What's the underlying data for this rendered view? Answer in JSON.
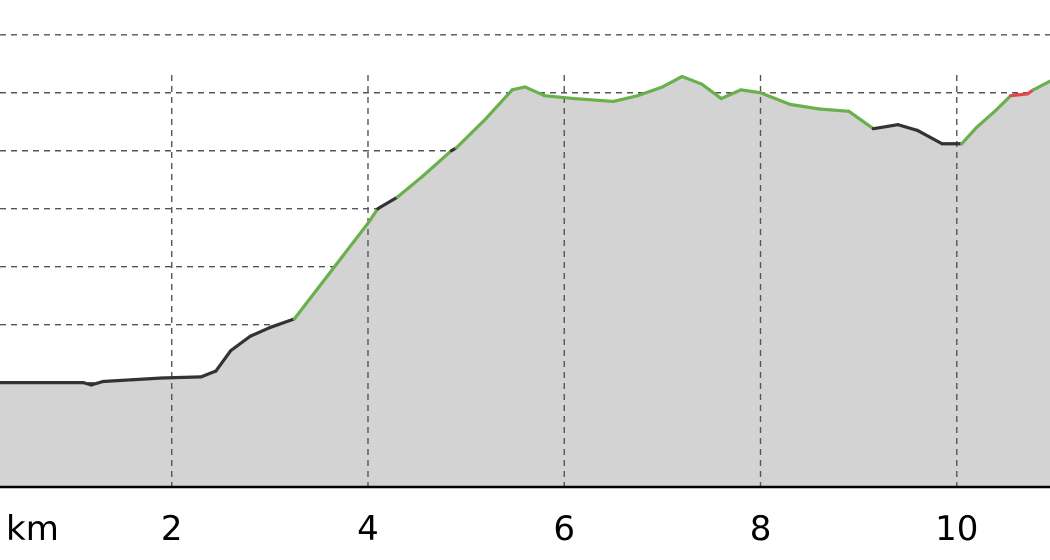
{
  "chart_data": {
    "type": "area",
    "title": "",
    "xlabel": "",
    "ylabel": "",
    "x_unit_label": "km",
    "x_ticks": [
      2,
      4,
      6,
      8,
      10
    ],
    "x_tick_labels": [
      "2",
      "4",
      "6",
      "8",
      "10"
    ],
    "xlim": [
      0.25,
      10.95
    ],
    "ylim": [
      -1.8,
      6.6
    ],
    "y_gridlines": [
      -1,
      0,
      1,
      2,
      3,
      4,
      5,
      6
    ],
    "y_tick_labels_visible": false,
    "grid": true,
    "fill_color": "#d3d3d3",
    "grade_colors": {
      "flat": "#333333",
      "climb": "#6ab04c",
      "steep": "#e8454a"
    },
    "profile": [
      {
        "x": 0.25,
        "y": 0.0,
        "grade": "flat"
      },
      {
        "x": 1.1,
        "y": 0.0,
        "grade": "flat"
      },
      {
        "x": 1.18,
        "y": -0.04,
        "grade": "flat"
      },
      {
        "x": 1.3,
        "y": 0.02,
        "grade": "flat"
      },
      {
        "x": 1.6,
        "y": 0.05,
        "grade": "flat"
      },
      {
        "x": 1.9,
        "y": 0.08,
        "grade": "flat"
      },
      {
        "x": 2.3,
        "y": 0.1,
        "grade": "flat"
      },
      {
        "x": 2.45,
        "y": 0.2,
        "grade": "flat"
      },
      {
        "x": 2.6,
        "y": 0.55,
        "grade": "flat"
      },
      {
        "x": 2.8,
        "y": 0.8,
        "grade": "flat"
      },
      {
        "x": 3.0,
        "y": 0.95,
        "grade": "flat"
      },
      {
        "x": 3.25,
        "y": 1.1,
        "grade": "climb"
      },
      {
        "x": 3.5,
        "y": 1.65,
        "grade": "climb"
      },
      {
        "x": 3.75,
        "y": 2.2,
        "grade": "climb"
      },
      {
        "x": 4.0,
        "y": 2.75,
        "grade": "climb"
      },
      {
        "x": 4.1,
        "y": 3.0,
        "grade": "flat"
      },
      {
        "x": 4.3,
        "y": 3.2,
        "grade": "climb"
      },
      {
        "x": 4.55,
        "y": 3.55,
        "grade": "climb"
      },
      {
        "x": 4.85,
        "y": 4.0,
        "grade": "flat"
      },
      {
        "x": 4.9,
        "y": 4.05,
        "grade": "climb"
      },
      {
        "x": 5.2,
        "y": 4.55,
        "grade": "climb"
      },
      {
        "x": 5.47,
        "y": 5.05,
        "grade": "climb"
      },
      {
        "x": 5.6,
        "y": 5.1,
        "grade": "climb"
      },
      {
        "x": 5.8,
        "y": 4.95,
        "grade": "climb"
      },
      {
        "x": 6.1,
        "y": 4.9,
        "grade": "climb"
      },
      {
        "x": 6.5,
        "y": 4.85,
        "grade": "climb"
      },
      {
        "x": 6.75,
        "y": 4.95,
        "grade": "climb"
      },
      {
        "x": 7.0,
        "y": 5.1,
        "grade": "climb"
      },
      {
        "x": 7.2,
        "y": 5.28,
        "grade": "climb"
      },
      {
        "x": 7.4,
        "y": 5.15,
        "grade": "climb"
      },
      {
        "x": 7.6,
        "y": 4.9,
        "grade": "climb"
      },
      {
        "x": 7.8,
        "y": 5.05,
        "grade": "climb"
      },
      {
        "x": 8.0,
        "y": 5.0,
        "grade": "climb"
      },
      {
        "x": 8.3,
        "y": 4.8,
        "grade": "climb"
      },
      {
        "x": 8.6,
        "y": 4.72,
        "grade": "climb"
      },
      {
        "x": 8.9,
        "y": 4.68,
        "grade": "climb"
      },
      {
        "x": 9.15,
        "y": 4.38,
        "grade": "flat"
      },
      {
        "x": 9.4,
        "y": 4.45,
        "grade": "flat"
      },
      {
        "x": 9.6,
        "y": 4.35,
        "grade": "flat"
      },
      {
        "x": 9.85,
        "y": 4.12,
        "grade": "flat"
      },
      {
        "x": 10.05,
        "y": 4.12,
        "grade": "climb"
      },
      {
        "x": 10.2,
        "y": 4.4,
        "grade": "climb"
      },
      {
        "x": 10.4,
        "y": 4.7,
        "grade": "climb"
      },
      {
        "x": 10.55,
        "y": 4.95,
        "grade": "steep"
      },
      {
        "x": 10.72,
        "y": 4.98,
        "grade": "steep"
      },
      {
        "x": 10.78,
        "y": 5.05,
        "grade": "climb"
      },
      {
        "x": 10.95,
        "y": 5.2,
        "grade": "climb"
      }
    ]
  }
}
